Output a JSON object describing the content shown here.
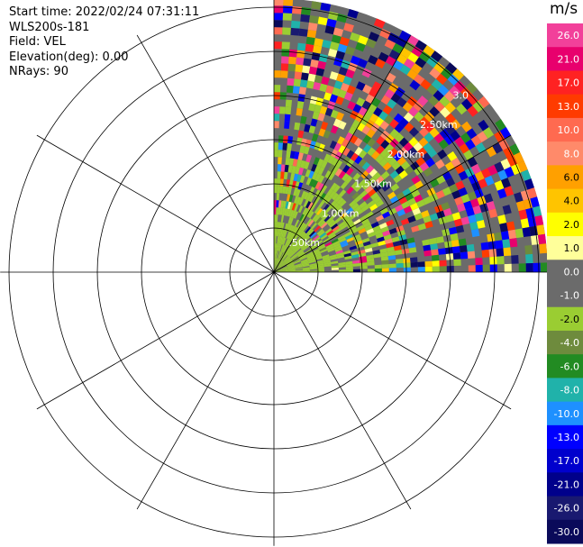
{
  "info": {
    "start_time": "Start time: 2022/02/24 07:31:11",
    "station": "WLS200s-181",
    "field": "Field: VEL",
    "elevation": "Elevation(deg): 0.00",
    "nrays": "NRays: 90"
  },
  "chart_data": {
    "type": "heatmap",
    "projection": "polar PPI",
    "field": "VEL",
    "units": "m/s",
    "range_rings": [
      {
        "km": 0.5,
        "label": ".50km"
      },
      {
        "km": 1.0,
        "label": "1.00km"
      },
      {
        "km": 1.5,
        "label": "1.50km"
      },
      {
        "km": 2.0,
        "label": "2.00km"
      },
      {
        "km": 2.5,
        "label": "2.50km"
      },
      {
        "km": 3.0,
        "label": "3.0"
      }
    ],
    "max_range_km": 3.1,
    "sector_deg": [
      0,
      90
    ],
    "spokes_deg": [
      0,
      30,
      60,
      90,
      120,
      150,
      180,
      210,
      240,
      270,
      300,
      330
    ],
    "colorbar": {
      "label": "m/s",
      "ticks": [
        "26.0",
        "21.0",
        "17.0",
        "13.0",
        "10.0",
        "8.0",
        "6.0",
        "4.0",
        "2.0",
        "1.0",
        "0.0",
        "-1.0",
        "-2.0",
        "-4.0",
        "-6.0",
        "-8.0",
        "-10.0",
        "-13.0",
        "-17.0",
        "-21.0",
        "-26.0",
        "-30.0"
      ],
      "colors": [
        "#f2409a",
        "#e8006d",
        "#ff2222",
        "#ff3b00",
        "#ff6a50",
        "#ff8a6a",
        "#ffa000",
        "#ffc400",
        "#ffff00",
        "#ffff9a",
        "#6b6b6b",
        "#6b6b6b",
        "#9acd32",
        "#6e8b3d",
        "#228b22",
        "#20b2aa",
        "#1e90ff",
        "#0000ff",
        "#0000cd",
        "#00008b",
        "#191970",
        "#0a0a5a"
      ]
    }
  }
}
